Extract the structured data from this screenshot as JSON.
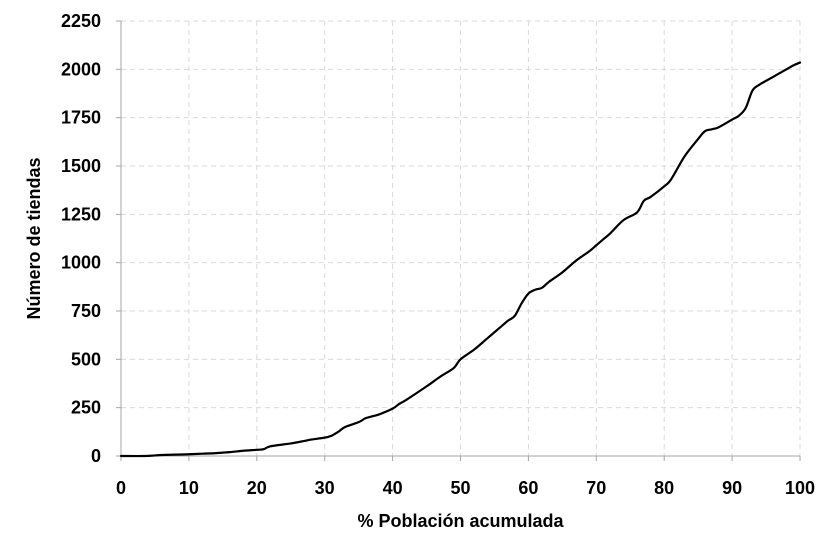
{
  "chart_data": {
    "type": "line",
    "title": "",
    "xlabel": "% Población acumulada",
    "ylabel": "Número de tiendas",
    "xlim": [
      0,
      100
    ],
    "ylim": [
      0,
      2250
    ],
    "x_ticks": [
      0,
      10,
      20,
      30,
      40,
      50,
      60,
      70,
      80,
      90,
      100
    ],
    "y_ticks": [
      0,
      250,
      500,
      750,
      1000,
      1250,
      1500,
      1750,
      2000,
      2250
    ],
    "grid": "dashed",
    "legend": "none",
    "series": [
      {
        "color": "#000000",
        "x": [
          0,
          3.5,
          5,
          6,
          8,
          10,
          12,
          14,
          16,
          18,
          20,
          21,
          22,
          25,
          27,
          28,
          30,
          31,
          32,
          33,
          35,
          36,
          37,
          38,
          40,
          41,
          42,
          45,
          47,
          49,
          50,
          52,
          54,
          56,
          57,
          58,
          59,
          60,
          61,
          62,
          63,
          65,
          67,
          69,
          70,
          71,
          72,
          74,
          76,
          77,
          78,
          80,
          81,
          83,
          85,
          86,
          87,
          88,
          90,
          91,
          92,
          93,
          94,
          96,
          98,
          99,
          100
        ],
        "y": [
          0,
          0,
          3,
          5,
          7,
          9,
          12,
          15,
          20,
          27,
          32,
          35,
          50,
          65,
          78,
          85,
          95,
          105,
          125,
          150,
          175,
          195,
          205,
          215,
          245,
          270,
          290,
          360,
          410,
          455,
          500,
          550,
          610,
          670,
          700,
          725,
          790,
          840,
          860,
          870,
          900,
          950,
          1010,
          1060,
          1090,
          1120,
          1150,
          1220,
          1260,
          1320,
          1340,
          1395,
          1430,
          1550,
          1640,
          1680,
          1690,
          1700,
          1740,
          1760,
          1800,
          1890,
          1920,
          1960,
          2000,
          2020,
          2035
        ]
      }
    ]
  }
}
